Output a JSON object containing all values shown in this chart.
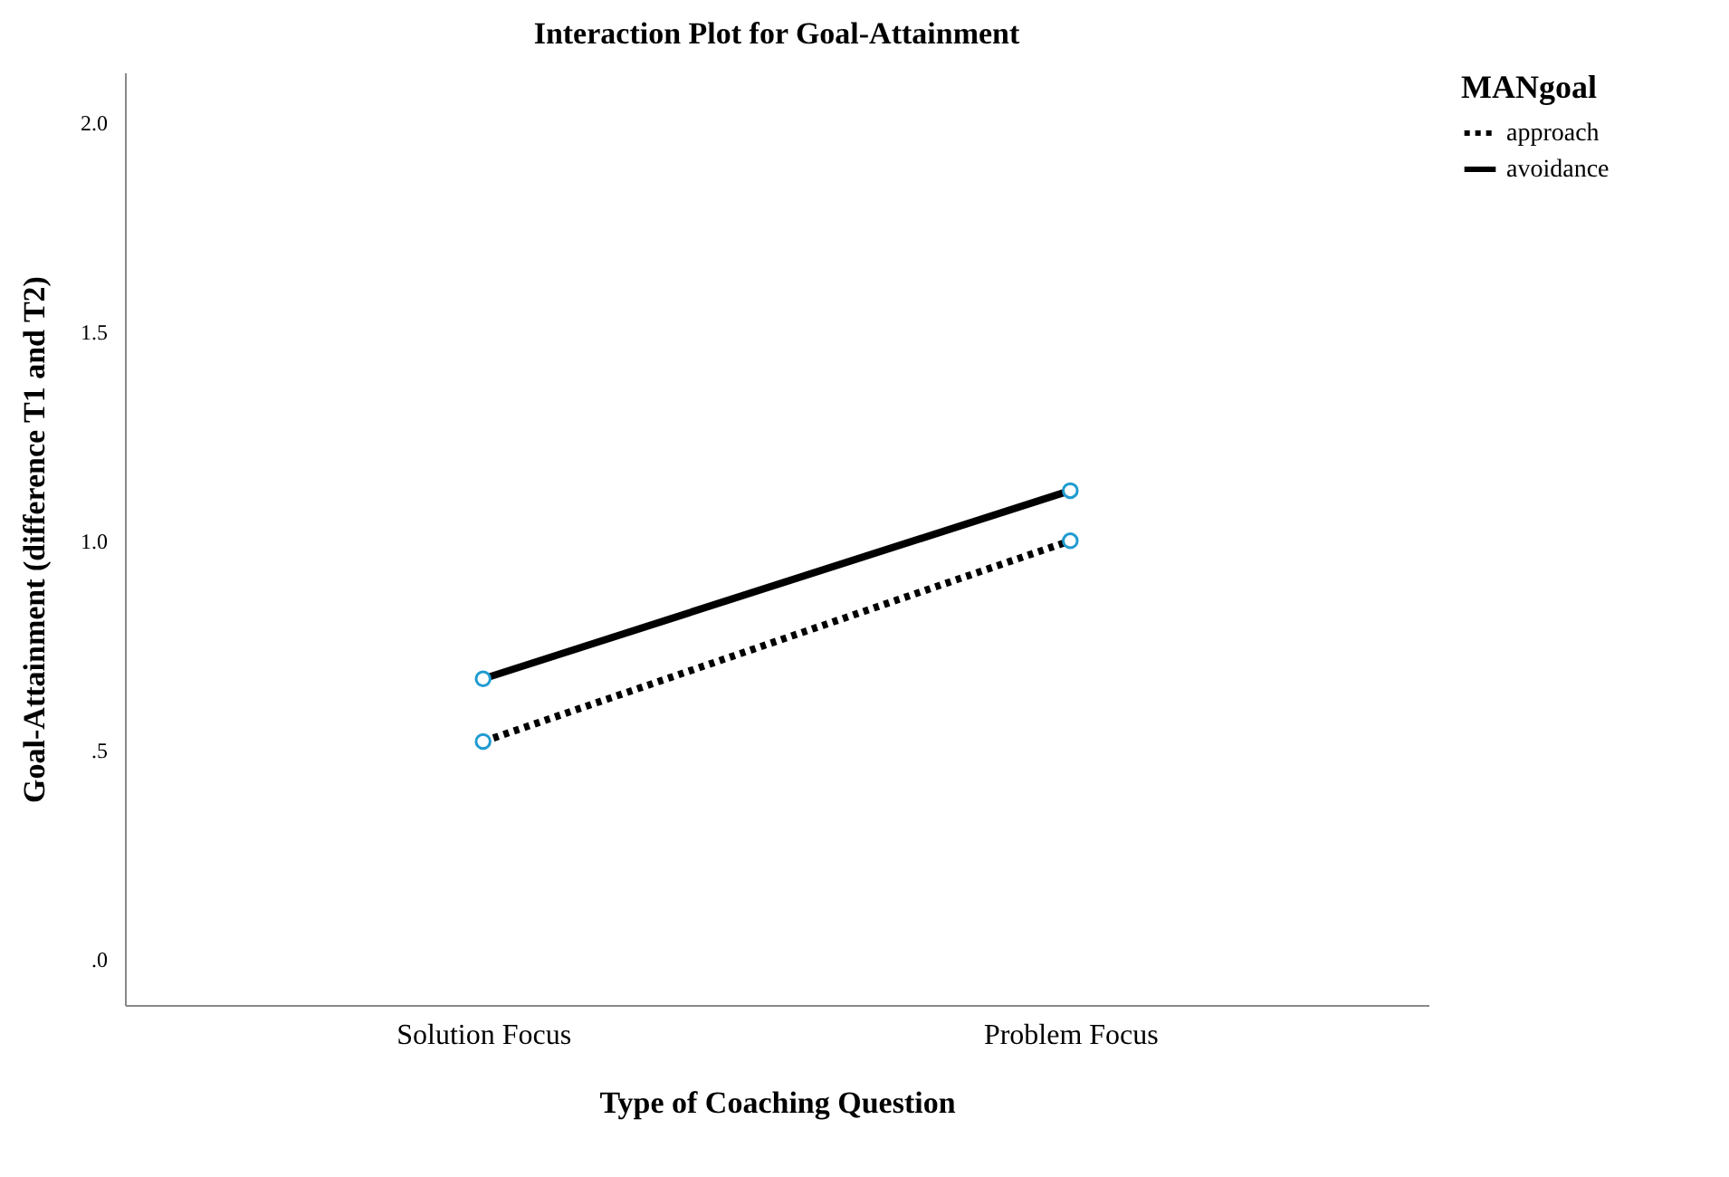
{
  "chart_data": {
    "type": "line",
    "title": "Interaction Plot for Goal-Attainment",
    "xlabel": "Type of Coaching Question",
    "ylabel": "Goal-Attainment (difference T1 and T2)",
    "legend_title": "MANgoal",
    "categories": [
      "Solution Focus",
      "Problem Focus"
    ],
    "series": [
      {
        "name": "approach",
        "color": "#000000",
        "values": [
          0.52,
          1.0
        ],
        "line_style": "dotted"
      },
      {
        "name": "avoidance",
        "color": "#000000",
        "values": [
          0.67,
          1.12
        ],
        "line_style": "solid"
      }
    ],
    "ylim": [
      -0.11,
      2.12
    ],
    "yticks": [
      {
        "value": 0,
        "label": ".0"
      },
      {
        "value": 0.5,
        "label": ".5"
      },
      {
        "value": 1,
        "label": "1.0"
      },
      {
        "value": 1.5,
        "label": "1.5"
      },
      {
        "value": 2,
        "label": "2.0"
      }
    ],
    "grid": false,
    "legend": "top right",
    "marker": "circle"
  }
}
